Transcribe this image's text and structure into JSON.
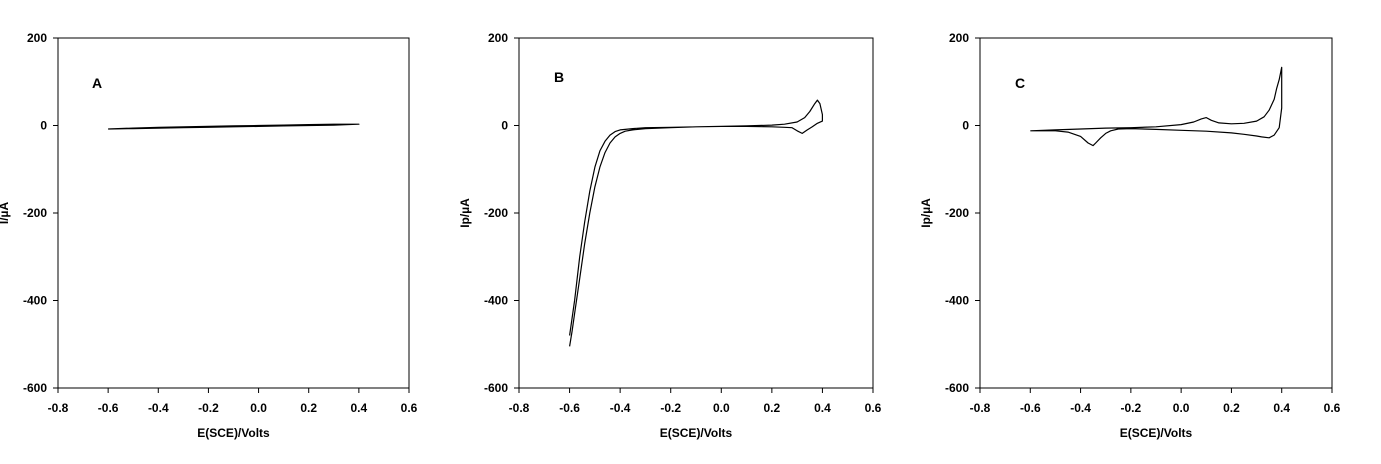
{
  "chart_data": [
    {
      "type": "line",
      "panel_label": "A",
      "xlabel": "E(SCE)/Volts",
      "ylabel": "I/µA",
      "xlim": [
        -0.8,
        0.6
      ],
      "ylim": [
        -600,
        200
      ],
      "xticks": [
        "-0.8",
        "-0.6",
        "-0.4",
        "-0.2",
        "0.0",
        "0.2",
        "0.4",
        "0.6"
      ],
      "yticks": [
        "200",
        "0",
        "-200",
        "-400",
        "-600"
      ],
      "grid": false,
      "series": [
        {
          "x": [
            -0.6,
            -0.5,
            -0.4,
            -0.3,
            -0.2,
            -0.1,
            0.0,
            0.1,
            0.2,
            0.3,
            0.4,
            0.3,
            0.2,
            0.1,
            0.0,
            -0.1,
            -0.2,
            -0.3,
            -0.4,
            -0.5,
            -0.6
          ],
          "y": [
            -8,
            -6,
            -4,
            -3,
            -2,
            -1,
            0,
            1,
            2,
            3,
            3,
            1,
            0,
            -1,
            -2,
            -3,
            -4,
            -5,
            -6,
            -7,
            -8
          ]
        }
      ]
    },
    {
      "type": "line",
      "panel_label": "B",
      "xlabel": "E(SCE)/Volts",
      "ylabel": "Ip/µA",
      "xlim": [
        -0.8,
        0.6
      ],
      "ylim": [
        -600,
        200
      ],
      "xticks": [
        "-0.8",
        "-0.6",
        "-0.4",
        "-0.2",
        "0.0",
        "0.2",
        "0.4",
        "0.6"
      ],
      "yticks": [
        "200",
        "0",
        "-200",
        "-400",
        "-600"
      ],
      "grid": false,
      "series": [
        {
          "x": [
            -0.6,
            -0.59,
            -0.58,
            -0.56,
            -0.54,
            -0.52,
            -0.5,
            -0.48,
            -0.46,
            -0.44,
            -0.42,
            -0.4,
            -0.38,
            -0.35,
            -0.3,
            -0.2,
            -0.1,
            0.0,
            0.1,
            0.2,
            0.25,
            0.3,
            0.33,
            0.35,
            0.37,
            0.38,
            0.39,
            0.4,
            0.4,
            0.38,
            0.36,
            0.34,
            0.32,
            0.3,
            0.28,
            0.25,
            0.2,
            0.1,
            0.0,
            -0.1,
            -0.2,
            -0.3,
            -0.35,
            -0.4,
            -0.42,
            -0.44,
            -0.46,
            -0.48,
            -0.5,
            -0.52,
            -0.54,
            -0.56,
            -0.58,
            -0.6
          ],
          "y": [
            -505,
            -470,
            -430,
            -350,
            -270,
            -200,
            -140,
            -95,
            -62,
            -40,
            -26,
            -18,
            -13,
            -10,
            -7,
            -5,
            -3,
            -2,
            -1,
            1,
            3,
            8,
            18,
            32,
            50,
            58,
            50,
            25,
            10,
            5,
            -3,
            -10,
            -18,
            -12,
            -5,
            -4,
            -3,
            -2,
            -2,
            -3,
            -4,
            -5,
            -7,
            -10,
            -14,
            -22,
            -36,
            -58,
            -95,
            -150,
            -220,
            -300,
            -400,
            -480
          ]
        }
      ]
    },
    {
      "type": "line",
      "panel_label": "C",
      "xlabel": "E(SCE)/Volts",
      "ylabel": "Ip/µA",
      "xlim": [
        -0.8,
        0.6
      ],
      "ylim": [
        -600,
        200
      ],
      "xticks": [
        "-0.8",
        "-0.6",
        "-0.4",
        "-0.2",
        "0.0",
        "0.2",
        "0.4",
        "0.6"
      ],
      "yticks": [
        "200",
        "0",
        "-200",
        "-400",
        "-600"
      ],
      "grid": false,
      "series": [
        {
          "x": [
            -0.6,
            -0.5,
            -0.4,
            -0.3,
            -0.2,
            -0.1,
            0.0,
            0.05,
            0.08,
            0.1,
            0.12,
            0.15,
            0.2,
            0.25,
            0.3,
            0.33,
            0.35,
            0.37,
            0.38,
            0.39,
            0.4,
            0.4,
            0.39,
            0.37,
            0.35,
            0.32,
            0.3,
            0.25,
            0.2,
            0.1,
            0.0,
            -0.1,
            -0.2,
            -0.25,
            -0.28,
            -0.3,
            -0.32,
            -0.34,
            -0.35,
            -0.37,
            -0.4,
            -0.45,
            -0.5,
            -0.6
          ],
          "y": [
            -12,
            -10,
            -8,
            -6,
            -5,
            -3,
            2,
            8,
            15,
            18,
            12,
            6,
            4,
            5,
            10,
            20,
            35,
            60,
            85,
            105,
            133,
            40,
            -5,
            -22,
            -28,
            -26,
            -24,
            -20,
            -17,
            -13,
            -11,
            -9,
            -7,
            -8,
            -12,
            -18,
            -28,
            -40,
            -46,
            -40,
            -25,
            -15,
            -12,
            -12
          ]
        }
      ]
    }
  ]
}
